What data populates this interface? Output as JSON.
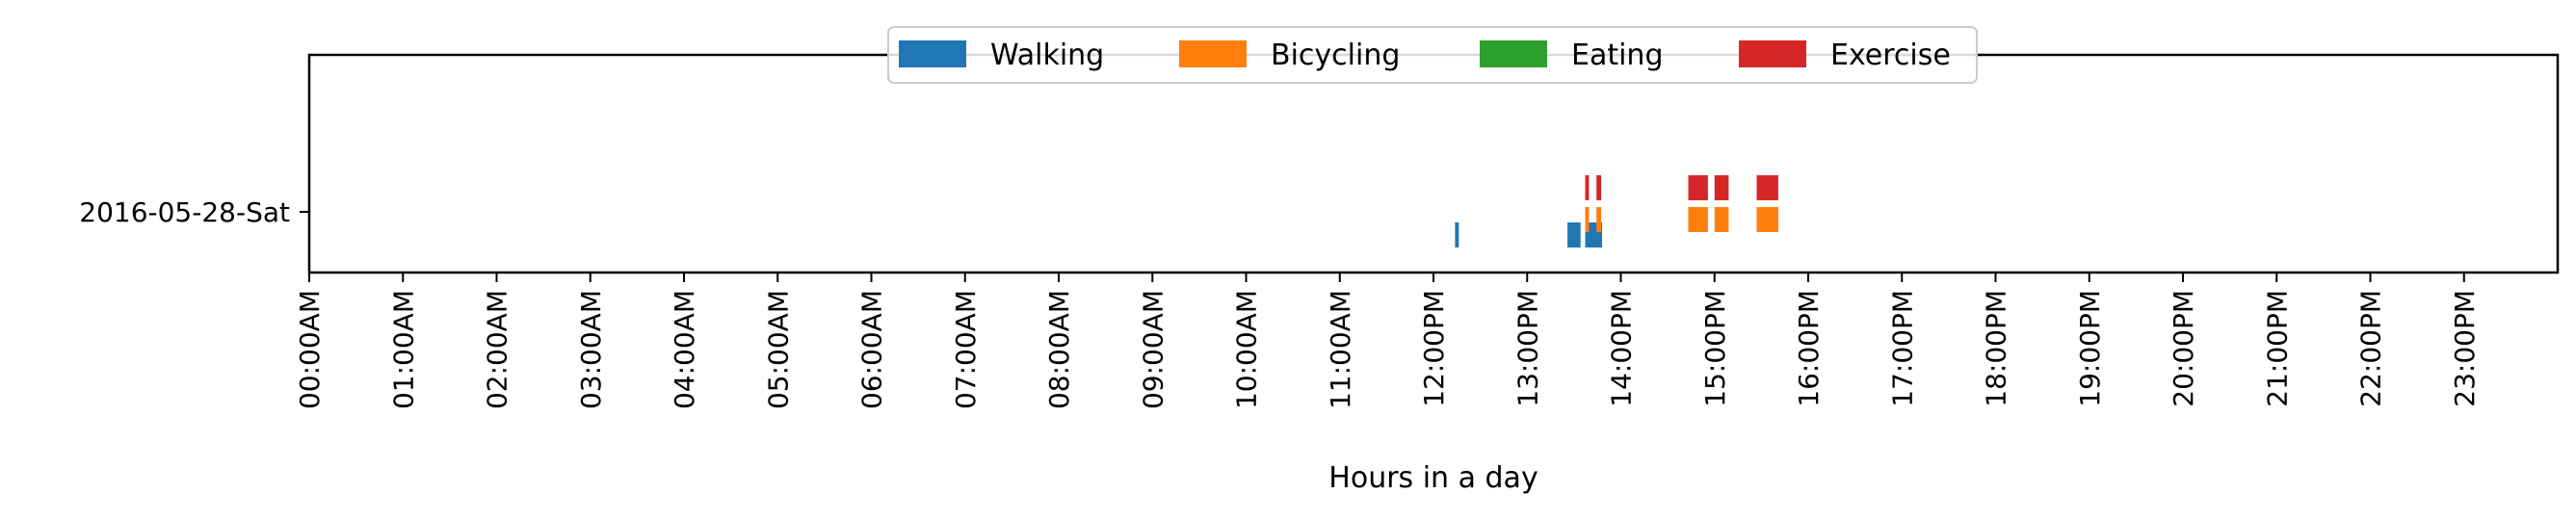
{
  "chart_data": {
    "type": "bar",
    "orientation": "horizontal-timeline",
    "xlabel": "Hours in a day",
    "ylabel": "",
    "xlim": [
      0,
      24
    ],
    "x_ticks": [
      0,
      1,
      2,
      3,
      4,
      5,
      6,
      7,
      8,
      9,
      10,
      11,
      12,
      13,
      14,
      15,
      16,
      17,
      18,
      19,
      20,
      21,
      22,
      23
    ],
    "x_tick_labels": [
      "00:00AM",
      "01:00AM",
      "02:00AM",
      "03:00AM",
      "04:00AM",
      "05:00AM",
      "06:00AM",
      "07:00AM",
      "08:00AM",
      "09:00AM",
      "10:00AM",
      "11:00AM",
      "12:00PM",
      "13:00PM",
      "14:00PM",
      "15:00PM",
      "16:00PM",
      "17:00PM",
      "18:00PM",
      "19:00PM",
      "20:00PM",
      "21:00PM",
      "22:00PM",
      "23:00PM"
    ],
    "categories": [
      "2016-05-28-Sat"
    ],
    "grid": false,
    "legend_position": "top-center",
    "series": [
      {
        "name": "Walking",
        "color": "#1f77b4",
        "lane": 0,
        "intervals": [
          [
            12.23,
            12.27
          ],
          [
            13.43,
            13.57
          ],
          [
            13.62,
            13.8
          ]
        ]
      },
      {
        "name": "Bicycling",
        "color": "#ff7f0e",
        "lane": 1,
        "intervals": [
          [
            13.62,
            13.66
          ],
          [
            13.74,
            13.79
          ],
          [
            14.72,
            14.93
          ],
          [
            15.0,
            15.15
          ],
          [
            15.45,
            15.68
          ]
        ]
      },
      {
        "name": "Eating",
        "color": "#2ca02c",
        "lane": 2,
        "intervals": []
      },
      {
        "name": "Exercise",
        "color": "#d62728",
        "lane": 3,
        "intervals": [
          [
            13.62,
            13.66
          ],
          [
            13.74,
            13.79
          ],
          [
            14.72,
            14.93
          ],
          [
            15.0,
            15.15
          ],
          [
            15.45,
            15.68
          ]
        ]
      }
    ]
  }
}
